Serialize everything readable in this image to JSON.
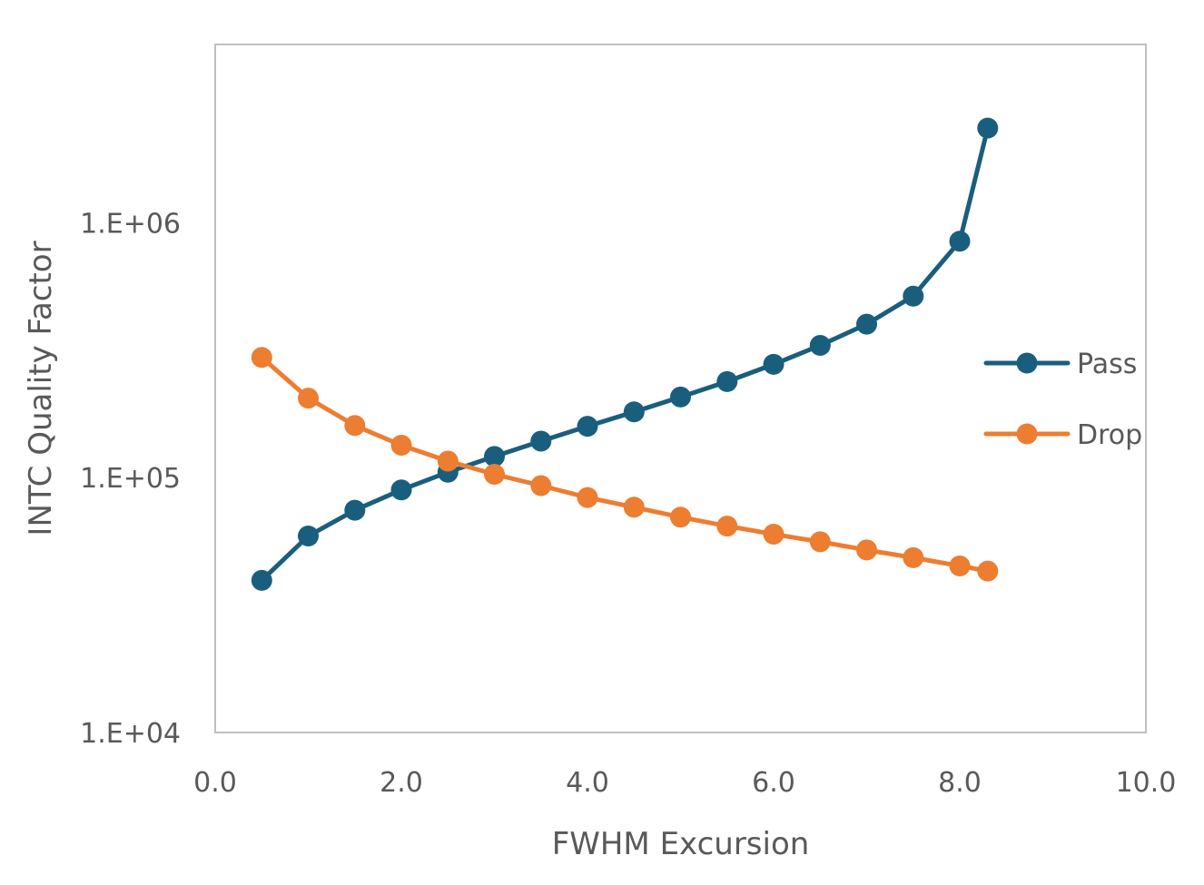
{
  "chart_data": {
    "type": "line",
    "title": "",
    "xlabel": "FWHM Excursion",
    "ylabel": "INTC Quality Factor",
    "xlim": [
      0,
      10
    ],
    "ylim": [
      10000,
      5000000
    ],
    "y_scale": "log",
    "x_ticks": [
      0,
      2,
      4,
      6,
      8,
      10
    ],
    "x_tick_labels": [
      "0.0",
      "2.0",
      "4.0",
      "6.0",
      "8.0",
      "10.0"
    ],
    "y_ticks": [
      10000,
      100000,
      1000000
    ],
    "y_tick_labels": [
      "1.E+04",
      "1.E+05",
      "1.E+06"
    ],
    "grid": false,
    "legend_position": "right",
    "x": [
      0.5,
      1.0,
      1.5,
      2.0,
      2.5,
      3.0,
      3.5,
      4.0,
      4.5,
      5.0,
      5.5,
      6.0,
      6.5,
      7.0,
      7.5,
      8.0,
      8.3
    ],
    "series": [
      {
        "name": "Pass",
        "color": "#1a5e7e",
        "values": [
          39500,
          59000,
          74500,
          89500,
          105000,
          121000,
          139000,
          159000,
          181000,
          207000,
          238000,
          278000,
          330000,
          400000,
          515000,
          845000,
          2350000
        ]
      },
      {
        "name": "Drop",
        "color": "#ed7d31",
        "values": [
          296000,
          205000,
          160000,
          134000,
          116000,
          103000,
          93000,
          83500,
          76500,
          70000,
          64500,
          60000,
          56000,
          52000,
          48500,
          45000,
          43000
        ]
      }
    ]
  }
}
